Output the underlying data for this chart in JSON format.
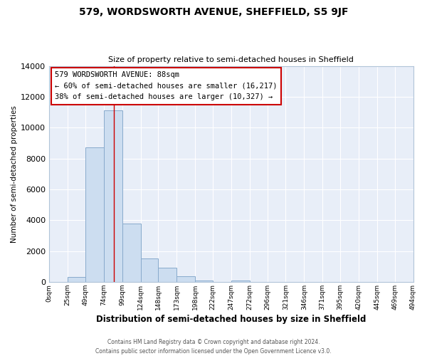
{
  "title": "579, WORDSWORTH AVENUE, SHEFFIELD, S5 9JF",
  "subtitle": "Size of property relative to semi-detached houses in Sheffield",
  "xlabel": "Distribution of semi-detached houses by size in Sheffield",
  "ylabel": "Number of semi-detached properties",
  "bar_color": "#ccddf0",
  "bar_edge_color": "#88aacc",
  "background_color": "#ffffff",
  "plot_bg_color": "#e8eef8",
  "grid_color": "#ffffff",
  "property_line_color": "#cc0000",
  "property_size": 88,
  "annotation_line1": "579 WORDSWORTH AVENUE: 88sqm",
  "annotation_line2": "← 60% of semi-detached houses are smaller (16,217)",
  "annotation_line3": "38% of semi-detached houses are larger (10,327) →",
  "annotation_box_color": "#ffffff",
  "annotation_box_edge": "#cc0000",
  "categories": [
    "0sqm",
    "25sqm",
    "49sqm",
    "74sqm",
    "99sqm",
    "124sqm",
    "148sqm",
    "173sqm",
    "198sqm",
    "222sqm",
    "247sqm",
    "272sqm",
    "296sqm",
    "321sqm",
    "346sqm",
    "371sqm",
    "395sqm",
    "420sqm",
    "445sqm",
    "469sqm",
    "494sqm"
  ],
  "bin_edges": [
    0,
    25,
    49,
    74,
    99,
    124,
    148,
    173,
    198,
    222,
    247,
    272,
    296,
    321,
    346,
    371,
    395,
    420,
    445,
    469,
    494
  ],
  "bar_heights": [
    0,
    300,
    8700,
    11100,
    3800,
    1500,
    900,
    380,
    100,
    0,
    100,
    0,
    0,
    0,
    0,
    0,
    0,
    0,
    0,
    0
  ],
  "ylim": [
    0,
    14000
  ],
  "yticks": [
    0,
    2000,
    4000,
    6000,
    8000,
    10000,
    12000,
    14000
  ],
  "footer_line1": "Contains HM Land Registry data © Crown copyright and database right 2024.",
  "footer_line2": "Contains public sector information licensed under the Open Government Licence v3.0."
}
